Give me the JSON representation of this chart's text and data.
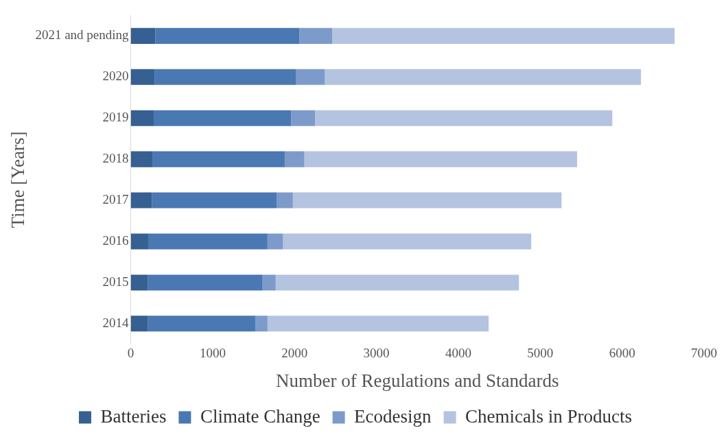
{
  "chart_data": {
    "type": "bar",
    "orientation": "horizontal",
    "stacked": true,
    "categories": [
      "2021 and pending",
      "2020",
      "2019",
      "2018",
      "2017",
      "2016",
      "2015",
      "2014"
    ],
    "series": [
      {
        "name": "Batteries",
        "color": "#365f92",
        "values": [
          300,
          290,
          280,
          270,
          260,
          220,
          210,
          210
        ]
      },
      {
        "name": "Climate Change",
        "color": "#4a78b2",
        "values": [
          1760,
          1730,
          1680,
          1610,
          1520,
          1450,
          1400,
          1310
        ]
      },
      {
        "name": "Ecodesign",
        "color": "#7d9bca",
        "values": [
          400,
          350,
          290,
          240,
          200,
          190,
          160,
          150
        ]
      },
      {
        "name": "Chemicals in Products",
        "color": "#b4c3df",
        "values": [
          4180,
          3860,
          3630,
          3330,
          3280,
          3030,
          2970,
          2700
        ]
      }
    ],
    "xlabel": "Number of Regulations and Standards",
    "ylabel": "Time [Years]",
    "xlim": [
      0,
      7000
    ],
    "xticks": [
      0,
      1000,
      2000,
      3000,
      4000,
      5000,
      6000,
      7000
    ],
    "grid": false,
    "legend": "bottom"
  }
}
